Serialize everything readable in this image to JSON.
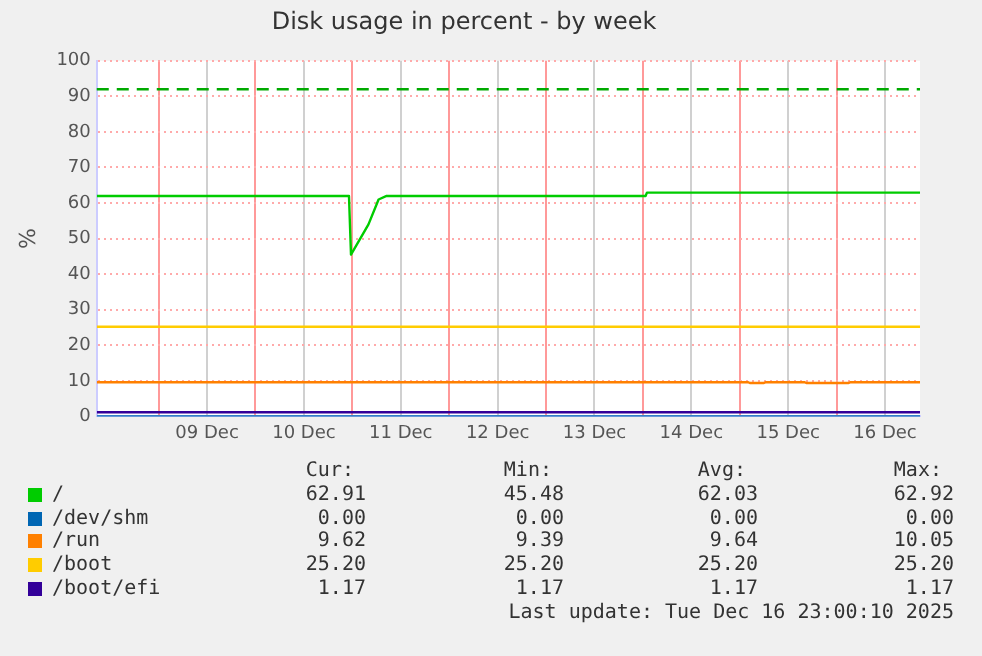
{
  "chart_data": {
    "type": "line",
    "title": "Disk usage in percent - by week",
    "ylabel": "%",
    "xlim": [
      "2025-12-08T08:40",
      "2025-12-16T20:40"
    ],
    "xticks": [
      {
        "value": "2025-12-09T00:00",
        "label": null
      },
      {
        "value": "2025-12-09T12:00",
        "label": "09 Dec"
      },
      {
        "value": "2025-12-10T00:00",
        "label": null
      },
      {
        "value": "2025-12-10T12:00",
        "label": "10 Dec"
      },
      {
        "value": "2025-12-11T00:00",
        "label": null
      },
      {
        "value": "2025-12-11T12:00",
        "label": "11 Dec"
      },
      {
        "value": "2025-12-12T00:00",
        "label": null
      },
      {
        "value": "2025-12-12T12:00",
        "label": "12 Dec"
      },
      {
        "value": "2025-12-13T00:00",
        "label": null
      },
      {
        "value": "2025-12-13T12:00",
        "label": "13 Dec"
      },
      {
        "value": "2025-12-14T00:00",
        "label": null
      },
      {
        "value": "2025-12-14T12:00",
        "label": "14 Dec"
      },
      {
        "value": "2025-12-15T00:00",
        "label": null
      },
      {
        "value": "2025-12-15T12:00",
        "label": "15 Dec"
      },
      {
        "value": "2025-12-16T00:00",
        "label": null
      },
      {
        "value": "2025-12-16T12:00",
        "label": "16 Dec"
      }
    ],
    "ylim": [
      0,
      100
    ],
    "yticks": [
      0,
      10,
      20,
      30,
      40,
      50,
      60,
      70,
      80,
      90,
      100
    ],
    "grid": true,
    "legend": "bottom",
    "marker": "none",
    "series": [
      {
        "name": "/",
        "color": "#00cc00",
        "x": [
          "2025-12-08T08:40",
          "2025-12-10T23:10",
          "2025-12-10T23:40",
          "2025-12-11T04:00",
          "2025-12-11T06:30",
          "2025-12-11T08:30",
          "2025-12-14T00:40",
          "2025-12-14T01:00",
          "2025-12-16T20:40"
        ],
        "values": [
          62.0,
          62.0,
          45.48,
          54,
          61,
          62.0,
          62.0,
          62.92,
          62.92
        ]
      },
      {
        "name": "/dev/shm",
        "color": "#0066b3",
        "x": [
          "2025-12-08T08:40",
          "2025-12-16T20:40"
        ],
        "values": [
          0,
          0
        ]
      },
      {
        "name": "/run",
        "color": "#ff8000",
        "x": [
          "2025-12-08T08:40",
          "2025-12-15T02:00",
          "2025-12-15T02:30",
          "2025-12-15T06:00",
          "2025-12-15T06:30",
          "2025-12-15T16:00",
          "2025-12-15T16:30",
          "2025-12-16T03:00",
          "2025-12-16T03:30",
          "2025-12-16T20:40"
        ],
        "values": [
          9.62,
          9.62,
          9.39,
          9.39,
          9.62,
          9.62,
          9.39,
          9.39,
          9.62,
          9.62
        ]
      },
      {
        "name": "/boot",
        "color": "#ffcc00",
        "x": [
          "2025-12-08T08:40",
          "2025-12-16T20:40"
        ],
        "values": [
          25.2,
          25.2
        ]
      },
      {
        "name": "/boot/efi",
        "color": "#330099",
        "x": [
          "2025-12-08T08:40",
          "2025-12-16T20:40"
        ],
        "values": [
          1.17,
          1.17
        ]
      }
    ],
    "ref_lines": [
      {
        "axis": "y",
        "value": 92,
        "label": null,
        "color": "#00aa00",
        "line_style": "dashed"
      }
    ],
    "annotations": [
      "Cur:",
      "Min:",
      "Avg:",
      "Max:",
      "62.91",
      "45.48",
      "62.03",
      "62.92",
      "0.00",
      "0.00",
      "0.00",
      "0.00",
      "9.62",
      "9.39",
      "9.64",
      "10.05",
      "25.20",
      "25.20",
      "25.20",
      "25.20",
      "1.17",
      "1.17",
      "1.17",
      "1.17",
      "Last update: Tue Dec 16 23:00:10 2025"
    ]
  }
}
